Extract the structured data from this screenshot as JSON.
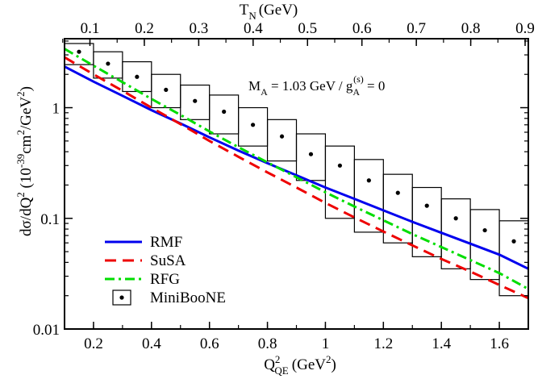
{
  "chart_data": {
    "type": "line",
    "x_axis": {
      "quantity": "Q",
      "superscript": "2",
      "subscript": "QE",
      "unit": "(GeV",
      "unit_sup": "2",
      "unit_close": ")",
      "range": [
        0.1,
        1.7
      ],
      "ticks": [
        0.2,
        0.4,
        0.6,
        0.8,
        1.0,
        1.2,
        1.4,
        1.6
      ],
      "tick_labels": [
        "0.2",
        "0.4",
        "0.6",
        "0.8",
        "1",
        "1.2",
        "1.4",
        "1.6"
      ]
    },
    "top_axis": {
      "quantity": "T",
      "subscript": "N",
      "unit": "(GeV)",
      "ticks": [
        0.1,
        0.2,
        0.3,
        0.4,
        0.5,
        0.6,
        0.7,
        0.8,
        0.9
      ],
      "tick_labels": [
        "0.1",
        "0.2",
        "0.3",
        "0.4",
        "0.5",
        "0.6",
        "0.7",
        "0.8",
        "0.9"
      ]
    },
    "y_axis": {
      "scale": "log",
      "label_main": "dσ/dQ",
      "label_sup": "2",
      "label_unit": " (10",
      "label_exp": "-39",
      "label_unit2": "cm",
      "label_sup2": "2",
      "label_unit3": "/GeV",
      "label_sup3": "2",
      "label_close": ")",
      "range": [
        0.01,
        4.2
      ],
      "ticks": [
        0.01,
        0.1,
        1
      ],
      "tick_labels": [
        "0.01",
        "0.1",
        "1"
      ]
    },
    "annotation": {
      "ma": "M",
      "ma_sub": "A",
      "ma_val": " = 1.03 GeV  /  g",
      "ga_sub": "A",
      "ga_sup": "(s)",
      "ga_val": " = 0"
    },
    "legend_position": "bottom-left",
    "series": [
      {
        "name": "RMF",
        "color": "#0000ee",
        "style": "solid",
        "x": [
          0.1,
          0.2,
          0.3,
          0.4,
          0.5,
          0.6,
          0.7,
          0.8,
          0.9,
          1.0,
          1.1,
          1.2,
          1.3,
          1.4,
          1.5,
          1.6,
          1.7
        ],
        "y": [
          2.35,
          1.72,
          1.28,
          0.95,
          0.72,
          0.54,
          0.41,
          0.315,
          0.245,
          0.19,
          0.15,
          0.118,
          0.093,
          0.074,
          0.059,
          0.047,
          0.035
        ]
      },
      {
        "name": "SuSA",
        "color": "#ee0000",
        "style": "dashed",
        "x": [
          0.1,
          0.2,
          0.3,
          0.4,
          0.5,
          0.6,
          0.7,
          0.8,
          0.9,
          1.0,
          1.1,
          1.2,
          1.3,
          1.4,
          1.5,
          1.6,
          1.7
        ],
        "y": [
          2.85,
          2.0,
          1.42,
          1.0,
          0.71,
          0.5,
          0.36,
          0.26,
          0.19,
          0.138,
          0.102,
          0.076,
          0.057,
          0.043,
          0.033,
          0.025,
          0.019
        ]
      },
      {
        "name": "RFG",
        "color": "#00dd00",
        "style": "dashdot",
        "x": [
          0.1,
          0.2,
          0.3,
          0.4,
          0.5,
          0.6,
          0.7,
          0.8,
          0.9,
          1.0,
          1.1,
          1.2,
          1.3,
          1.4,
          1.5,
          1.6,
          1.7
        ],
        "y": [
          3.4,
          2.4,
          1.7,
          1.2,
          0.86,
          0.61,
          0.44,
          0.32,
          0.235,
          0.172,
          0.128,
          0.096,
          0.072,
          0.055,
          0.042,
          0.032,
          0.023
        ]
      }
    ],
    "data": {
      "name": "MiniBooNE",
      "bin_width": 0.1,
      "x": [
        0.15,
        0.25,
        0.35,
        0.45,
        0.55,
        0.65,
        0.75,
        0.85,
        0.95,
        1.05,
        1.15,
        1.25,
        1.35,
        1.45,
        1.55,
        1.65
      ],
      "y": [
        3.2,
        2.5,
        1.9,
        1.45,
        1.15,
        0.92,
        0.7,
        0.55,
        0.38,
        0.3,
        0.22,
        0.17,
        0.13,
        0.1,
        0.078,
        0.062
      ],
      "low": [
        2.45,
        1.85,
        1.4,
        1.0,
        0.78,
        0.58,
        0.45,
        0.33,
        0.22,
        0.1,
        0.075,
        0.06,
        0.045,
        0.035,
        0.028,
        0.02
      ],
      "high": [
        3.8,
        3.2,
        2.6,
        2.0,
        1.6,
        1.3,
        1.0,
        0.78,
        0.58,
        0.45,
        0.34,
        0.25,
        0.19,
        0.15,
        0.12,
        0.095
      ]
    }
  }
}
